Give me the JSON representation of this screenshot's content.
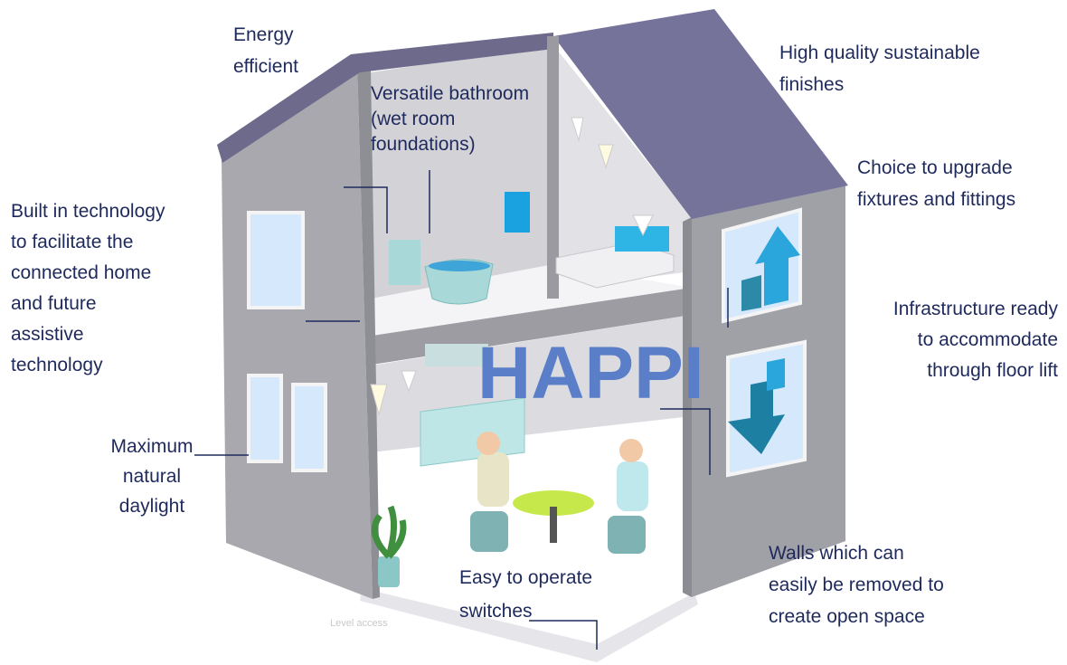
{
  "labels": [
    {
      "lines": [
        "Energy",
        "efficient"
      ]
    },
    {
      "lines": [
        "High quality sustainable",
        "finishes"
      ]
    },
    {
      "lines": [
        "Versatile bathroom",
        "(wet room",
        "foundations)"
      ]
    },
    {
      "lines": [
        "Choice to upgrade",
        "fixtures and fittings"
      ]
    },
    {
      "lines": [
        "Built in technology",
        "to facilitate the",
        "connected home",
        "and future",
        "assistive",
        "technology"
      ]
    },
    {
      "lines": [
        "Infrastructure ready",
        "to accommodate",
        "through floor lift"
      ]
    },
    {
      "lines": [
        "Maximum",
        "natural",
        "daylight"
      ]
    },
    {
      "lines": [
        "Easy to operate",
        "switches"
      ]
    },
    {
      "lines": [
        "Walls which can",
        "easily be removed to",
        "create open space"
      ]
    }
  ],
  "center_title": "HAPPI",
  "floor_note": "Level access"
}
